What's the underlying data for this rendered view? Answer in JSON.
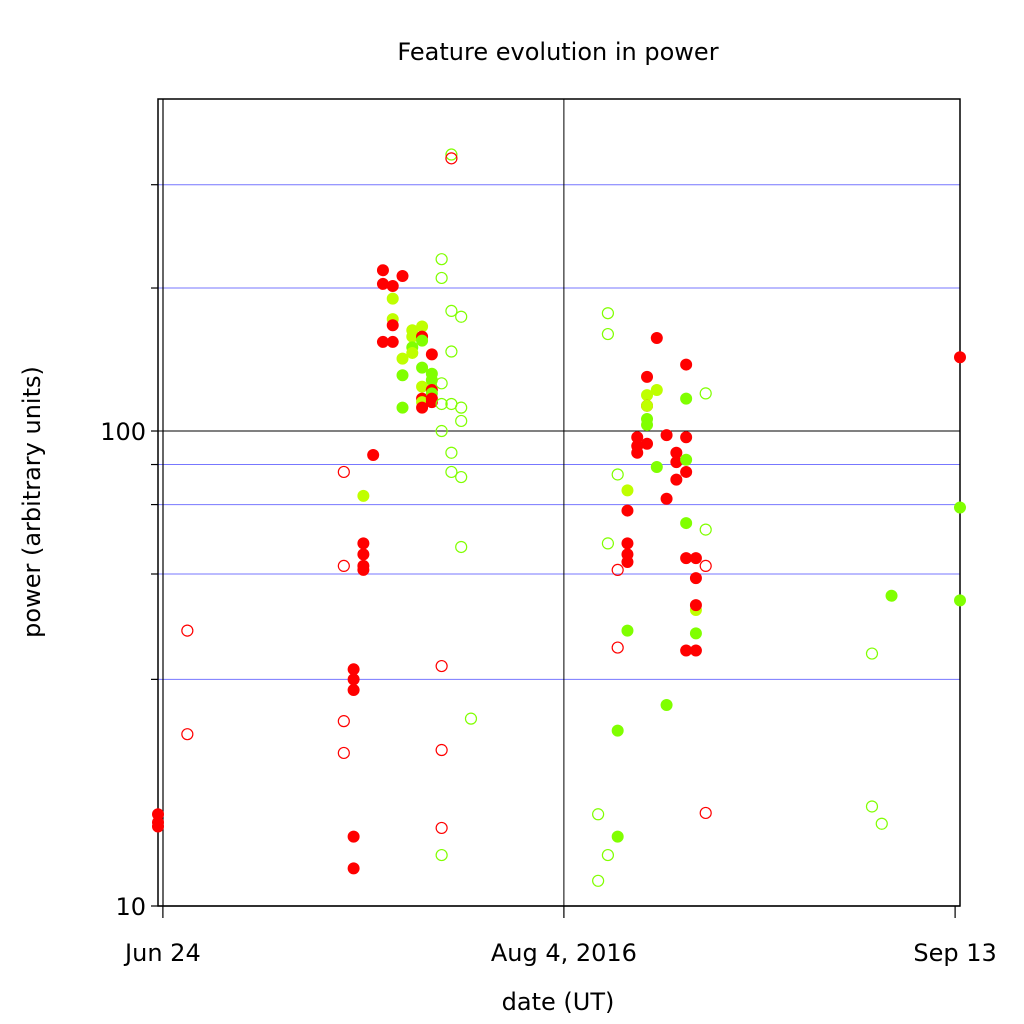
{
  "chart_data": {
    "type": "scatter",
    "title": "Feature evolution in power",
    "xlabel": "date (UT)",
    "ylabel": "power (arbitrary units)",
    "y_scale": "log",
    "ylim": [
      10,
      500
    ],
    "xlim": [
      "2016-06-23T12:00",
      "2016-09-13T12:00"
    ],
    "x_ticks": [
      {
        "date": "2016-06-24",
        "label": "Jun 24"
      },
      {
        "date": "2016-08-04",
        "label": "Aug 4, 2016"
      },
      {
        "date": "2016-09-13",
        "label": "Sep 13"
      }
    ],
    "y_ticks": [
      {
        "value": 10,
        "label": "10"
      },
      {
        "value": 100,
        "label": "100"
      }
    ],
    "y_gridlines": [
      30,
      50,
      70,
      85,
      200,
      330
    ],
    "x_gridlines": [
      "2016-08-04"
    ],
    "legend": "none",
    "colors": {
      "red": "#ff0000",
      "green": "#80ff00",
      "yellow_green": "#bfff00",
      "grid": "#7777ff",
      "axis": "#000000"
    },
    "points": [
      {
        "x": "2016-06-23",
        "y": 15.6,
        "color": "red",
        "filled": true
      },
      {
        "x": "2016-06-23",
        "y": 15.0,
        "color": "red",
        "filled": true
      },
      {
        "x": "2016-06-23",
        "y": 14.7,
        "color": "red",
        "filled": true
      },
      {
        "x": "2016-06-26",
        "y": 38.0,
        "color": "red",
        "filled": false
      },
      {
        "x": "2016-06-26",
        "y": 23.0,
        "color": "red",
        "filled": false
      },
      {
        "x": "2016-07-12",
        "y": 82.0,
        "color": "red",
        "filled": false
      },
      {
        "x": "2016-07-12",
        "y": 52.0,
        "color": "red",
        "filled": false
      },
      {
        "x": "2016-07-12",
        "y": 24.5,
        "color": "red",
        "filled": false
      },
      {
        "x": "2016-07-12",
        "y": 21.0,
        "color": "red",
        "filled": false
      },
      {
        "x": "2016-07-13",
        "y": 31.5,
        "color": "red",
        "filled": true
      },
      {
        "x": "2016-07-13",
        "y": 30.0,
        "color": "red",
        "filled": true
      },
      {
        "x": "2016-07-13",
        "y": 28.5,
        "color": "red",
        "filled": true
      },
      {
        "x": "2016-07-13",
        "y": 14.0,
        "color": "red",
        "filled": true
      },
      {
        "x": "2016-07-13",
        "y": 12.0,
        "color": "red",
        "filled": true
      },
      {
        "x": "2016-07-14",
        "y": 73.0,
        "color": "yellow_green",
        "filled": true
      },
      {
        "x": "2016-07-14",
        "y": 58.0,
        "color": "red",
        "filled": true
      },
      {
        "x": "2016-07-14",
        "y": 55.0,
        "color": "red",
        "filled": true
      },
      {
        "x": "2016-07-14",
        "y": 52.0,
        "color": "red",
        "filled": true
      },
      {
        "x": "2016-07-14",
        "y": 51.0,
        "color": "red",
        "filled": true
      },
      {
        "x": "2016-07-15",
        "y": 89.0,
        "color": "red",
        "filled": true
      },
      {
        "x": "2016-07-16",
        "y": 218.0,
        "color": "red",
        "filled": true
      },
      {
        "x": "2016-07-16",
        "y": 204.0,
        "color": "red",
        "filled": true
      },
      {
        "x": "2016-07-16",
        "y": 154.0,
        "color": "red",
        "filled": true
      },
      {
        "x": "2016-07-17",
        "y": 202.0,
        "color": "red",
        "filled": true
      },
      {
        "x": "2016-07-17",
        "y": 190.0,
        "color": "yellow_green",
        "filled": true
      },
      {
        "x": "2016-07-17",
        "y": 172.0,
        "color": "yellow_green",
        "filled": true
      },
      {
        "x": "2016-07-17",
        "y": 167.0,
        "color": "red",
        "filled": true
      },
      {
        "x": "2016-07-17",
        "y": 154.0,
        "color": "red",
        "filled": true
      },
      {
        "x": "2016-07-18",
        "y": 212.0,
        "color": "red",
        "filled": true
      },
      {
        "x": "2016-07-18",
        "y": 142.0,
        "color": "yellow_green",
        "filled": true
      },
      {
        "x": "2016-07-18",
        "y": 131.0,
        "color": "green",
        "filled": true
      },
      {
        "x": "2016-07-18",
        "y": 112.0,
        "color": "green",
        "filled": true
      },
      {
        "x": "2016-07-19",
        "y": 163.0,
        "color": "yellow_green",
        "filled": true
      },
      {
        "x": "2016-07-19",
        "y": 158.0,
        "color": "yellow_green",
        "filled": true
      },
      {
        "x": "2016-07-19",
        "y": 150.0,
        "color": "green",
        "filled": true
      },
      {
        "x": "2016-07-19",
        "y": 146.0,
        "color": "yellow_green",
        "filled": true
      },
      {
        "x": "2016-07-20",
        "y": 166.0,
        "color": "yellow_green",
        "filled": true
      },
      {
        "x": "2016-07-20",
        "y": 158.0,
        "color": "red",
        "filled": true
      },
      {
        "x": "2016-07-20",
        "y": 155.0,
        "color": "green",
        "filled": true
      },
      {
        "x": "2016-07-20",
        "y": 136.0,
        "color": "green",
        "filled": true
      },
      {
        "x": "2016-07-20",
        "y": 124.0,
        "color": "yellow_green",
        "filled": true
      },
      {
        "x": "2016-07-20",
        "y": 117.0,
        "color": "red",
        "filled": true
      },
      {
        "x": "2016-07-20",
        "y": 115.0,
        "color": "yellow_green",
        "filled": true
      },
      {
        "x": "2016-07-20",
        "y": 112.0,
        "color": "red",
        "filled": true
      },
      {
        "x": "2016-07-21",
        "y": 145.0,
        "color": "red",
        "filled": true
      },
      {
        "x": "2016-07-21",
        "y": 132.0,
        "color": "green",
        "filled": true
      },
      {
        "x": "2016-07-21",
        "y": 128.0,
        "color": "green",
        "filled": true
      },
      {
        "x": "2016-07-21",
        "y": 122.0,
        "color": "red",
        "filled": true
      },
      {
        "x": "2016-07-21",
        "y": 120.0,
        "color": "green",
        "filled": true
      },
      {
        "x": "2016-07-21",
        "y": 117.0,
        "color": "red",
        "filled": true
      },
      {
        "x": "2016-07-21",
        "y": 115.0,
        "color": "red",
        "filled": true
      },
      {
        "x": "2016-07-22",
        "y": 230.0,
        "color": "green",
        "filled": false
      },
      {
        "x": "2016-07-22",
        "y": 210.0,
        "color": "green",
        "filled": false
      },
      {
        "x": "2016-07-22",
        "y": 126.0,
        "color": "green",
        "filled": false
      },
      {
        "x": "2016-07-22",
        "y": 114.0,
        "color": "green",
        "filled": false
      },
      {
        "x": "2016-07-22",
        "y": 100.0,
        "color": "green",
        "filled": false
      },
      {
        "x": "2016-07-22",
        "y": 32.0,
        "color": "red",
        "filled": false
      },
      {
        "x": "2016-07-22",
        "y": 21.3,
        "color": "red",
        "filled": false
      },
      {
        "x": "2016-07-22",
        "y": 14.6,
        "color": "red",
        "filled": false
      },
      {
        "x": "2016-07-22",
        "y": 12.8,
        "color": "green",
        "filled": false
      },
      {
        "x": "2016-07-23",
        "y": 382.0,
        "color": "green",
        "filled": false
      },
      {
        "x": "2016-07-23",
        "y": 375.0,
        "color": "red",
        "filled": false
      },
      {
        "x": "2016-07-23",
        "y": 179.0,
        "color": "green",
        "filled": false
      },
      {
        "x": "2016-07-23",
        "y": 147.0,
        "color": "green",
        "filled": false
      },
      {
        "x": "2016-07-23",
        "y": 114.0,
        "color": "green",
        "filled": false
      },
      {
        "x": "2016-07-23",
        "y": 90.0,
        "color": "green",
        "filled": false
      },
      {
        "x": "2016-07-23",
        "y": 82.0,
        "color": "green",
        "filled": false
      },
      {
        "x": "2016-07-24",
        "y": 174.0,
        "color": "green",
        "filled": false
      },
      {
        "x": "2016-07-24",
        "y": 112.0,
        "color": "green",
        "filled": false
      },
      {
        "x": "2016-07-24",
        "y": 105.0,
        "color": "green",
        "filled": false
      },
      {
        "x": "2016-07-24",
        "y": 80.0,
        "color": "green",
        "filled": false
      },
      {
        "x": "2016-07-24",
        "y": 57.0,
        "color": "green",
        "filled": false
      },
      {
        "x": "2016-07-25",
        "y": 24.8,
        "color": "green",
        "filled": false
      },
      {
        "x": "2016-08-07",
        "y": 15.6,
        "color": "green",
        "filled": false
      },
      {
        "x": "2016-08-07",
        "y": 11.3,
        "color": "green",
        "filled": false
      },
      {
        "x": "2016-08-08",
        "y": 177.0,
        "color": "green",
        "filled": false
      },
      {
        "x": "2016-08-08",
        "y": 160.0,
        "color": "green",
        "filled": false
      },
      {
        "x": "2016-08-08",
        "y": 58.0,
        "color": "green",
        "filled": false
      },
      {
        "x": "2016-08-08",
        "y": 12.8,
        "color": "green",
        "filled": false
      },
      {
        "x": "2016-08-09",
        "y": 81.0,
        "color": "green",
        "filled": false
      },
      {
        "x": "2016-08-09",
        "y": 51.0,
        "color": "red",
        "filled": false
      },
      {
        "x": "2016-08-09",
        "y": 35.0,
        "color": "red",
        "filled": false
      },
      {
        "x": "2016-08-09",
        "y": 23.4,
        "color": "green",
        "filled": true
      },
      {
        "x": "2016-08-09",
        "y": 14.0,
        "color": "green",
        "filled": true
      },
      {
        "x": "2016-08-10",
        "y": 75.0,
        "color": "yellow_green",
        "filled": true
      },
      {
        "x": "2016-08-10",
        "y": 68.0,
        "color": "red",
        "filled": true
      },
      {
        "x": "2016-08-10",
        "y": 58.0,
        "color": "red",
        "filled": true
      },
      {
        "x": "2016-08-10",
        "y": 55.0,
        "color": "red",
        "filled": true
      },
      {
        "x": "2016-08-10",
        "y": 53.0,
        "color": "red",
        "filled": true
      },
      {
        "x": "2016-08-10",
        "y": 38.0,
        "color": "green",
        "filled": true
      },
      {
        "x": "2016-08-11",
        "y": 97.0,
        "color": "red",
        "filled": true
      },
      {
        "x": "2016-08-11",
        "y": 93.0,
        "color": "red",
        "filled": true
      },
      {
        "x": "2016-08-11",
        "y": 90.0,
        "color": "red",
        "filled": true
      },
      {
        "x": "2016-08-12",
        "y": 130.0,
        "color": "red",
        "filled": true
      },
      {
        "x": "2016-08-12",
        "y": 119.0,
        "color": "yellow_green",
        "filled": true
      },
      {
        "x": "2016-08-12",
        "y": 113.0,
        "color": "red",
        "filled": true
      },
      {
        "x": "2016-08-12",
        "y": 113.0,
        "color": "yellow_green",
        "filled": true
      },
      {
        "x": "2016-08-12",
        "y": 106.0,
        "color": "green",
        "filled": true
      },
      {
        "x": "2016-08-12",
        "y": 103.0,
        "color": "green",
        "filled": true
      },
      {
        "x": "2016-08-12",
        "y": 94.0,
        "color": "red",
        "filled": true
      },
      {
        "x": "2016-08-13",
        "y": 157.0,
        "color": "red",
        "filled": true
      },
      {
        "x": "2016-08-13",
        "y": 122.0,
        "color": "yellow_green",
        "filled": true
      },
      {
        "x": "2016-08-13",
        "y": 84.0,
        "color": "green",
        "filled": true
      },
      {
        "x": "2016-08-14",
        "y": 98.0,
        "color": "red",
        "filled": true
      },
      {
        "x": "2016-08-14",
        "y": 72.0,
        "color": "red",
        "filled": true
      },
      {
        "x": "2016-08-14",
        "y": 26.5,
        "color": "green",
        "filled": true
      },
      {
        "x": "2016-08-15",
        "y": 90.0,
        "color": "red",
        "filled": true
      },
      {
        "x": "2016-08-15",
        "y": 86.0,
        "color": "red",
        "filled": true
      },
      {
        "x": "2016-08-15",
        "y": 79.0,
        "color": "red",
        "filled": true
      },
      {
        "x": "2016-08-16",
        "y": 138.0,
        "color": "red",
        "filled": true
      },
      {
        "x": "2016-08-16",
        "y": 117.0,
        "color": "green",
        "filled": true
      },
      {
        "x": "2016-08-16",
        "y": 97.0,
        "color": "red",
        "filled": true
      },
      {
        "x": "2016-08-16",
        "y": 87.0,
        "color": "green",
        "filled": true
      },
      {
        "x": "2016-08-16",
        "y": 82.0,
        "color": "red",
        "filled": true
      },
      {
        "x": "2016-08-16",
        "y": 64.0,
        "color": "green",
        "filled": true
      },
      {
        "x": "2016-08-16",
        "y": 54.0,
        "color": "red",
        "filled": true
      },
      {
        "x": "2016-08-16",
        "y": 34.5,
        "color": "red",
        "filled": true
      },
      {
        "x": "2016-08-17",
        "y": 54.0,
        "color": "red",
        "filled": true
      },
      {
        "x": "2016-08-17",
        "y": 49.0,
        "color": "red",
        "filled": true
      },
      {
        "x": "2016-08-17",
        "y": 42.0,
        "color": "yellow_green",
        "filled": true
      },
      {
        "x": "2016-08-17",
        "y": 43.0,
        "color": "red",
        "filled": true
      },
      {
        "x": "2016-08-17",
        "y": 37.5,
        "color": "green",
        "filled": true
      },
      {
        "x": "2016-08-17",
        "y": 34.5,
        "color": "red",
        "filled": true
      },
      {
        "x": "2016-08-18",
        "y": 120.0,
        "color": "green",
        "filled": false
      },
      {
        "x": "2016-08-18",
        "y": 62.0,
        "color": "green",
        "filled": false
      },
      {
        "x": "2016-08-18",
        "y": 52.0,
        "color": "red",
        "filled": false
      },
      {
        "x": "2016-08-18",
        "y": 15.7,
        "color": "red",
        "filled": false
      },
      {
        "x": "2016-09-04",
        "y": 34.0,
        "color": "green",
        "filled": false
      },
      {
        "x": "2016-09-04",
        "y": 16.2,
        "color": "green",
        "filled": false
      },
      {
        "x": "2016-09-05",
        "y": 14.9,
        "color": "green",
        "filled": false
      },
      {
        "x": "2016-09-06",
        "y": 45.0,
        "color": "green",
        "filled": true
      },
      {
        "x": "2016-09-13",
        "y": 143.0,
        "color": "red",
        "filled": true
      },
      {
        "x": "2016-09-13",
        "y": 69.0,
        "color": "green",
        "filled": true
      },
      {
        "x": "2016-09-13",
        "y": 44.0,
        "color": "green",
        "filled": true
      }
    ]
  }
}
